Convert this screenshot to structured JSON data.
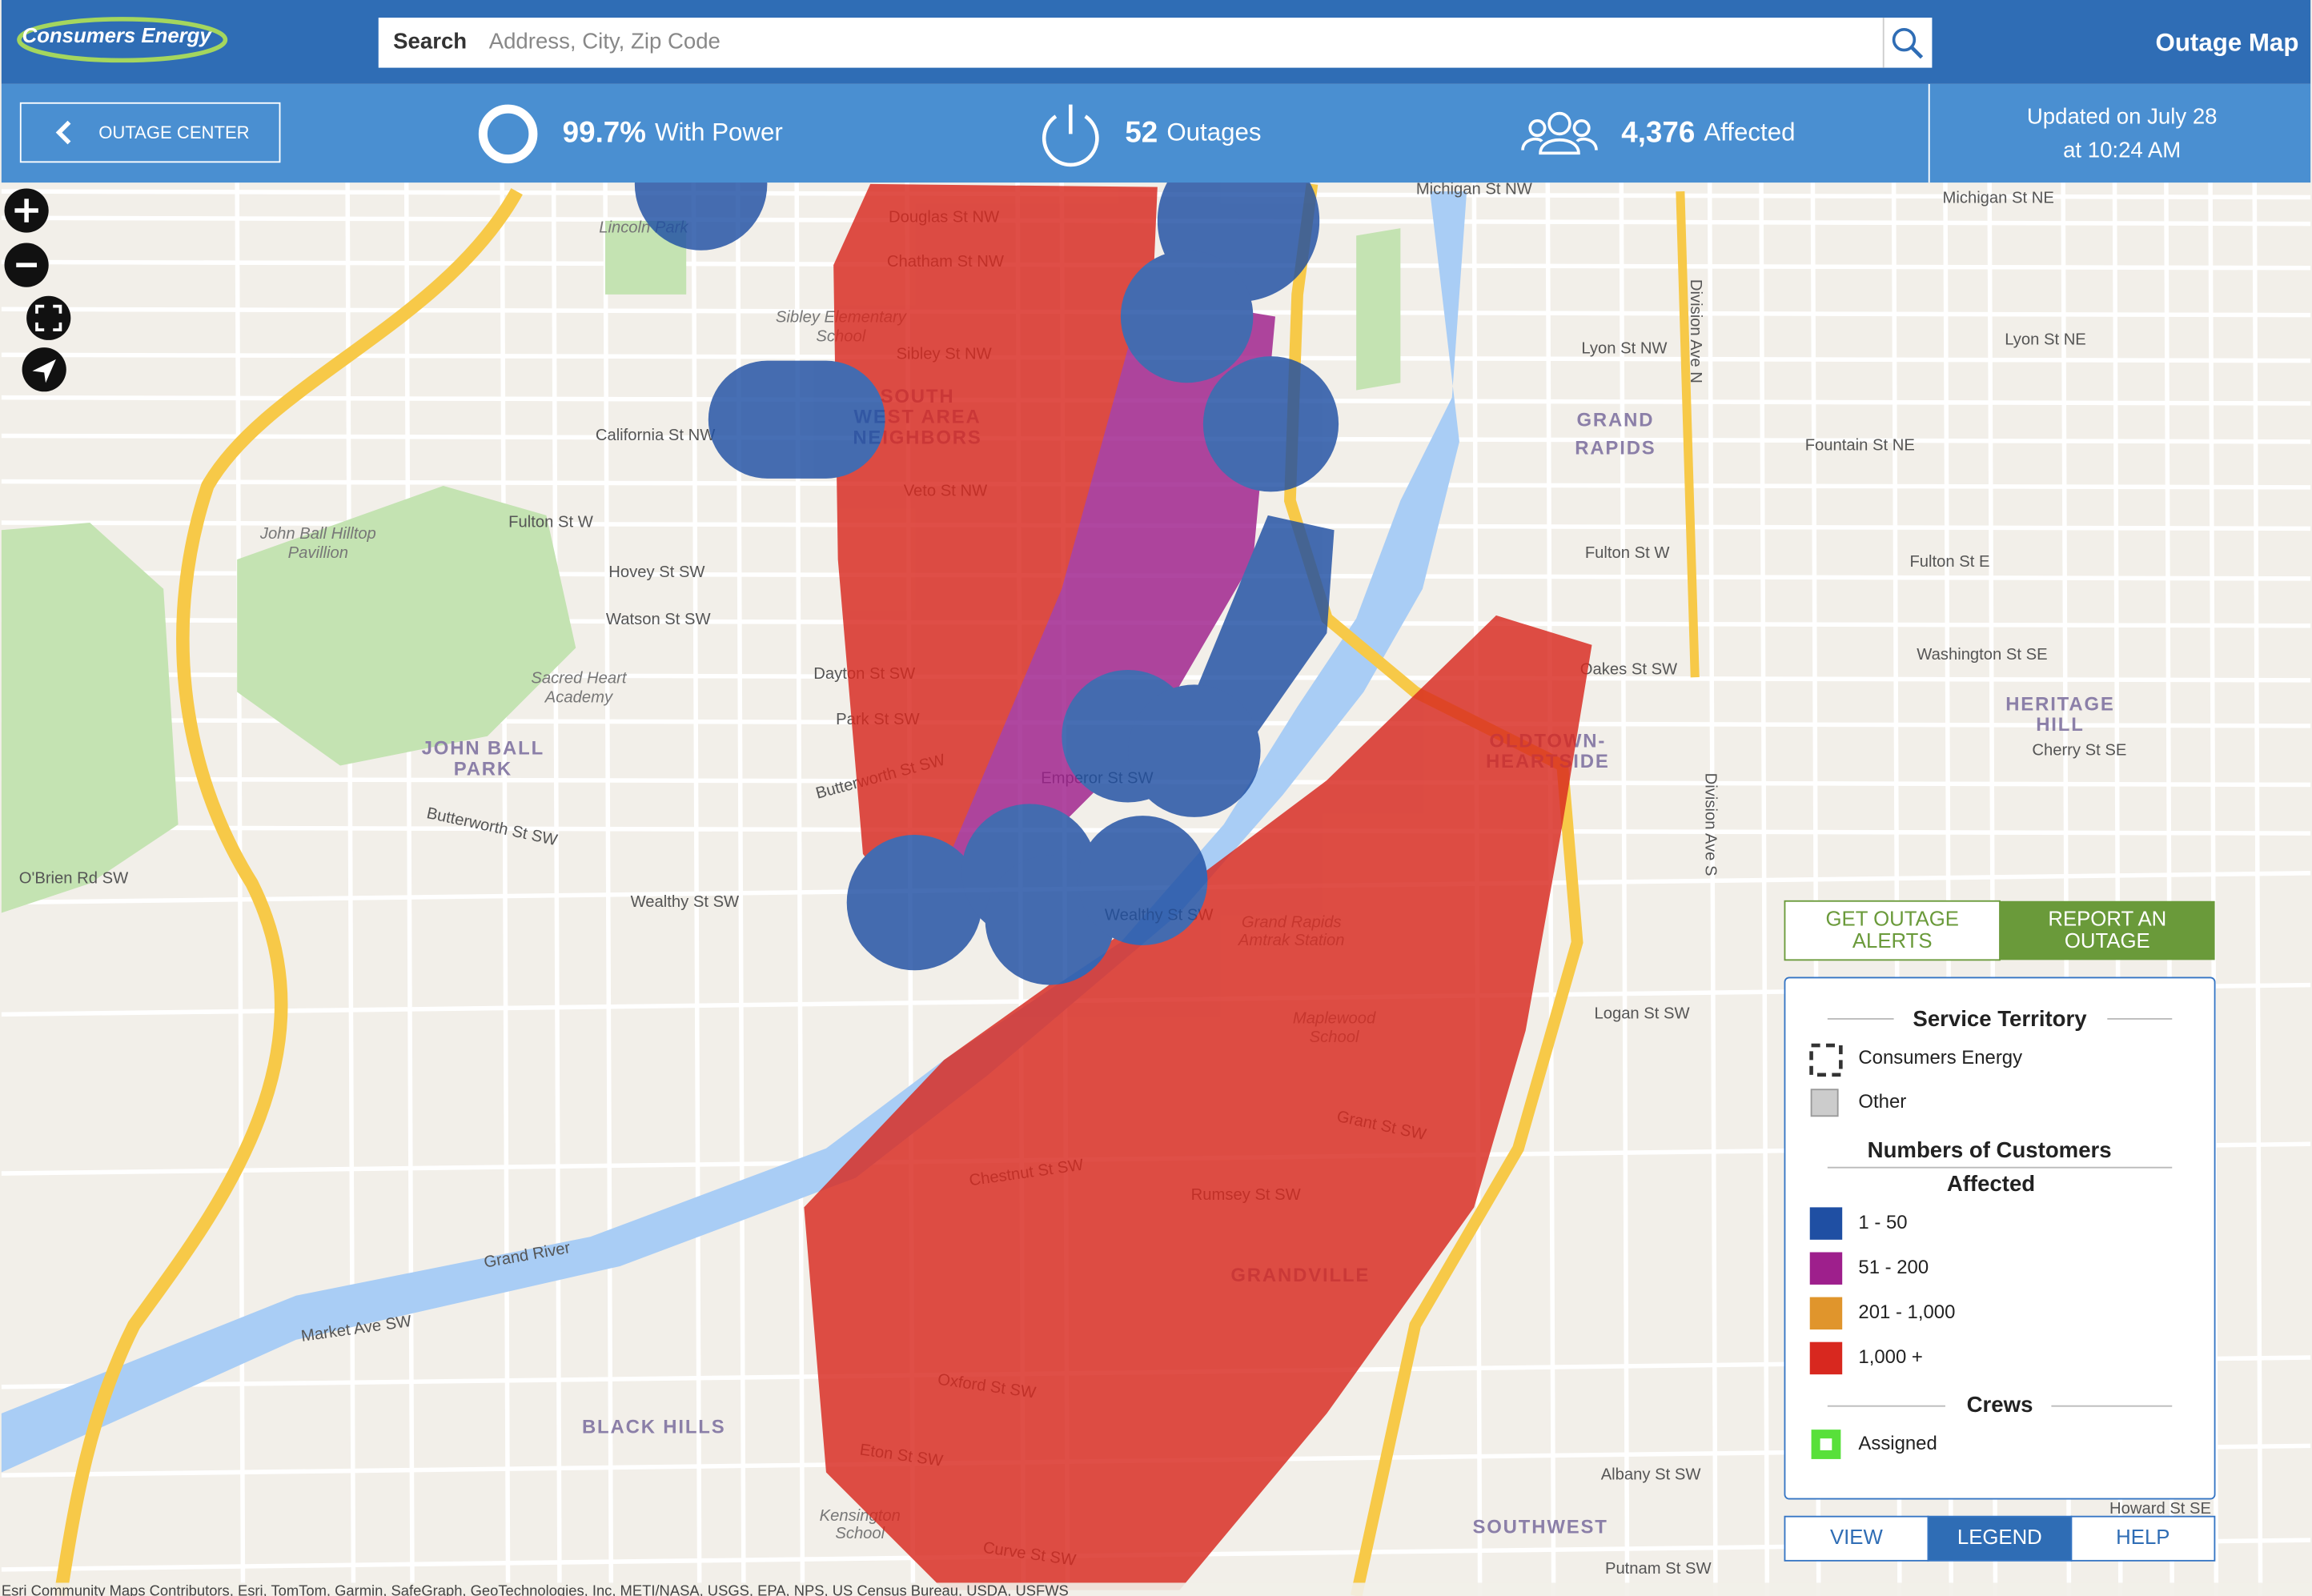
{
  "header": {
    "brand": "Consumers Energy",
    "search_label": "Search",
    "search_placeholder": "Address, City, Zip Code",
    "title": "Outage Map"
  },
  "status_bar": {
    "back_button": "OUTAGE CENTER",
    "power_value": "99.7%",
    "power_label": "With Power",
    "outages_value": "52",
    "outages_label": "Outages",
    "affected_value": "4,376",
    "affected_label": "Affected",
    "updated_line1": "Updated on July 28",
    "updated_line2": "at 10:24 AM"
  },
  "map": {
    "labels": [
      "Michigan St NW",
      "Michigan St NE",
      "Douglas St NW",
      "Chatham St NW",
      "Sibley St NW",
      "California St NW",
      "Veto St NW",
      "Fulton St W",
      "Fulton St W",
      "Fulton St E",
      "Hovey St SW",
      "Watson St SW",
      "Dayton St SW",
      "Park St SW",
      "Emperor St SW",
      "Butterworth St SW",
      "Wealthy St SW",
      "Wealthy St SW",
      "O'Brien Rd SW",
      "Oakes St SW",
      "Lyon St NW",
      "Lyon St NE",
      "Fountain St NE",
      "Washington St SE",
      "Cherry St SE",
      "Logan St SW",
      "Chestnut St SW",
      "Rumsey St SW",
      "Grant St SW",
      "Oxford St SW",
      "Eton St SW",
      "Curve St SW",
      "Albany St SW",
      "Howard St SE",
      "Putnam St SW",
      "Market Ave SW",
      "Grand River",
      "Division Ave N",
      "Division Ave S",
      "Butterworth St SW"
    ],
    "areas": [
      "GRAND",
      "RAPIDS",
      "JOHN BALL",
      "PARK",
      "SOUTH",
      "WEST AREA",
      "NEIGHBORS",
      "HERITAGE",
      "HILL",
      "OLDTOWN-",
      "HEARTSIDE",
      "BLACK HILLS",
      "GRANDVILLE",
      "SOUTHWEST"
    ],
    "places": [
      "Lincoln Park",
      "John Ball Hilltop",
      "Pavillion",
      "Sacred Heart",
      "Academy",
      "Grand Rapids",
      "Amtrak Station",
      "Maplewood",
      "School",
      "Sibley Elementary",
      "School",
      "Kensington",
      "School"
    ],
    "attribution": "Esri Community Maps Contributors, Esri, TomTom, Garmin, SafeGraph, GeoTechnologies, Inc, METI/NASA, USGS, EPA, NPS, US Census Bureau, USDA, USFWS"
  },
  "actions": {
    "alerts": [
      "GET OUTAGE",
      "ALERTS"
    ],
    "report": [
      "REPORT AN",
      "OUTAGE"
    ]
  },
  "legend": {
    "territory_title": "Service Territory",
    "territory": [
      "Consumers Energy",
      "Other"
    ],
    "customers_title": [
      "Numbers of Customers",
      "Affected"
    ],
    "ranges": [
      {
        "label": "1 - 50",
        "color": "#1f4fa3"
      },
      {
        "label": "51 - 200",
        "color": "#9e1f8c"
      },
      {
        "label": "201 - 1,000",
        "color": "#e0952c"
      },
      {
        "label": "1,000 +",
        "color": "#d8281f"
      }
    ],
    "crews_title": "Crews",
    "crews": [
      "Assigned"
    ]
  },
  "tabs": [
    "VIEW",
    "LEGEND",
    "HELP"
  ]
}
